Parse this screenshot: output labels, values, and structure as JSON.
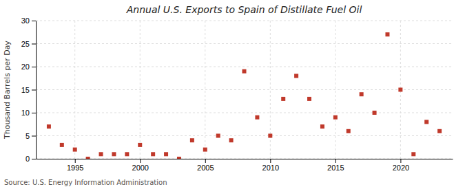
{
  "chart_data": {
    "type": "scatter",
    "title": "Annual U.S. Exports to Spain of Distillate Fuel Oil",
    "ylabel": "Thousand Barrels per Day",
    "annotations": [
      "Source: U.S. Energy Information Administration"
    ],
    "x": [
      1993,
      1994,
      1995,
      1996,
      1997,
      1998,
      1999,
      2000,
      2001,
      2002,
      2003,
      2004,
      2005,
      2006,
      2007,
      2008,
      2009,
      2010,
      2011,
      2012,
      2013,
      2014,
      2015,
      2016,
      2017,
      2018,
      2019,
      2020,
      2021,
      2022,
      2023
    ],
    "values": [
      7,
      3,
      2,
      0,
      1,
      1,
      1,
      3,
      1,
      1,
      0,
      4,
      2,
      5,
      4,
      19,
      9,
      5,
      13,
      18,
      13,
      7,
      9,
      6,
      14,
      10,
      27,
      15,
      1,
      8,
      6
    ],
    "color": "#c0392b",
    "marker": "square",
    "xlim": [
      1992,
      2024
    ],
    "xticks": [
      1995,
      2000,
      2005,
      2010,
      2015,
      2020
    ],
    "ylim": [
      0,
      30
    ],
    "yticks": [
      0,
      5,
      10,
      15,
      20,
      25,
      30
    ],
    "grid": true
  }
}
